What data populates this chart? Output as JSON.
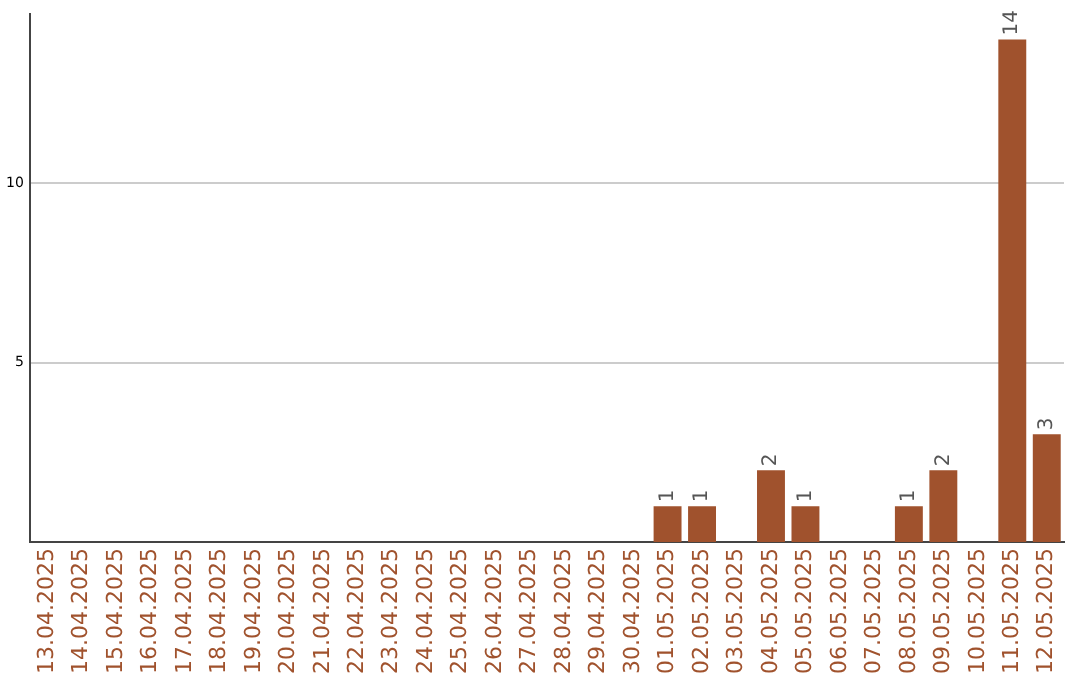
{
  "chart_data": {
    "type": "bar",
    "categories": [
      "13.04.2025",
      "14.04.2025",
      "15.04.2025",
      "16.04.2025",
      "17.04.2025",
      "18.04.2025",
      "19.04.2025",
      "20.04.2025",
      "21.04.2025",
      "22.04.2025",
      "23.04.2025",
      "24.04.2025",
      "25.04.2025",
      "26.04.2025",
      "27.04.2025",
      "28.04.2025",
      "29.04.2025",
      "30.04.2025",
      "01.05.2025",
      "02.05.2025",
      "03.05.2025",
      "04.05.2025",
      "05.05.2025",
      "06.05.2025",
      "07.05.2025",
      "08.05.2025",
      "09.05.2025",
      "10.05.2025",
      "11.05.2025",
      "12.05.2025"
    ],
    "values": [
      0,
      0,
      0,
      0,
      0,
      0,
      0,
      0,
      0,
      0,
      0,
      0,
      0,
      0,
      0,
      0,
      0,
      0,
      1,
      1,
      0,
      2,
      1,
      0,
      0,
      1,
      2,
      0,
      14,
      3
    ],
    "value_labels": [
      null,
      null,
      null,
      null,
      null,
      null,
      null,
      null,
      null,
      null,
      null,
      null,
      null,
      null,
      null,
      null,
      null,
      null,
      "1",
      "1",
      null,
      "2",
      "1",
      null,
      null,
      "1",
      "2",
      null,
      "14",
      "3"
    ],
    "color": "#a0522d",
    "ylim": [
      0,
      14.7
    ],
    "yticks": [
      5,
      10
    ],
    "grid": "y"
  }
}
